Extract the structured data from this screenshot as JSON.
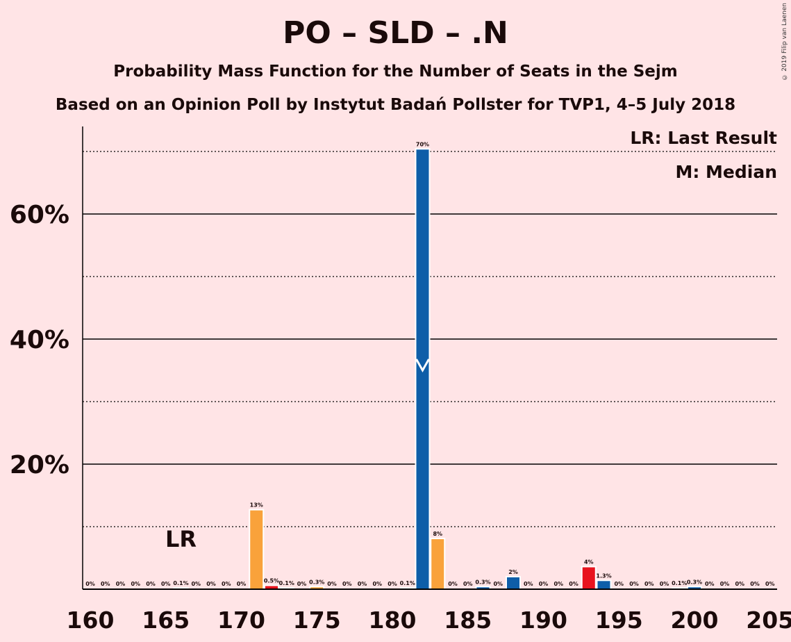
{
  "header": {
    "title": "PO – SLD – .N",
    "subtitle": "Probability Mass Function for the Number of Seats in the Sejm",
    "subtitle2": "Based on an Opinion Poll by Instytut Badań Pollster for TVP1, 4–5 July 2018",
    "copyright": "© 2019 Filip van Laenen"
  },
  "legend": {
    "lr": "LR: Last Result",
    "median": "M: Median"
  },
  "colors": {
    "background": "#ffe4e6",
    "blue": "#0e5ea8",
    "orange": "#f9a23b",
    "red": "#e8141e",
    "grid": "#000000"
  },
  "chart_data": {
    "type": "bar",
    "xlim": [
      160,
      205
    ],
    "ylim": [
      0,
      0.77
    ],
    "x_ticks": [
      160,
      165,
      170,
      175,
      180,
      185,
      190,
      195,
      200,
      205
    ],
    "y_major_ticks": [
      0.2,
      0.4,
      0.6
    ],
    "y_minor_lines": [
      0.1,
      0.3,
      0.5,
      0.7
    ],
    "y_tick_labels": [
      "20%",
      "40%",
      "60%"
    ],
    "last_result_seat": 166,
    "last_result_label": "LR",
    "median_seat": 182,
    "median_symbol": "M",
    "bars": [
      {
        "x": 160,
        "value": 0,
        "label": "0%",
        "color": "blue"
      },
      {
        "x": 161,
        "value": 0,
        "label": "0%",
        "color": "blue"
      },
      {
        "x": 162,
        "value": 0,
        "label": "0%",
        "color": "blue"
      },
      {
        "x": 163,
        "value": 0,
        "label": "0%",
        "color": "blue"
      },
      {
        "x": 164,
        "value": 0,
        "label": "0%",
        "color": "blue"
      },
      {
        "x": 165,
        "value": 0,
        "label": "0%",
        "color": "blue"
      },
      {
        "x": 166,
        "value": 0.001,
        "label": "0.1%",
        "color": "blue"
      },
      {
        "x": 167,
        "value": 0,
        "label": "0%",
        "color": "blue"
      },
      {
        "x": 168,
        "value": 0,
        "label": "0%",
        "color": "blue"
      },
      {
        "x": 169,
        "value": 0,
        "label": "0%",
        "color": "blue"
      },
      {
        "x": 170,
        "value": 0,
        "label": "0%",
        "color": "blue"
      },
      {
        "x": 171,
        "value": 0.126,
        "label": "13%",
        "color": "orange"
      },
      {
        "x": 172,
        "value": 0.005,
        "label": "0.5%",
        "color": "red"
      },
      {
        "x": 173,
        "value": 0.001,
        "label": "0.1%",
        "color": "blue"
      },
      {
        "x": 174,
        "value": 0,
        "label": "0%",
        "color": "blue"
      },
      {
        "x": 175,
        "value": 0.003,
        "label": "0.3%",
        "color": "orange"
      },
      {
        "x": 176,
        "value": 0,
        "label": "0%",
        "color": "blue"
      },
      {
        "x": 177,
        "value": 0,
        "label": "0%",
        "color": "blue"
      },
      {
        "x": 178,
        "value": 0,
        "label": "0%",
        "color": "blue"
      },
      {
        "x": 179,
        "value": 0,
        "label": "0%",
        "color": "blue"
      },
      {
        "x": 180,
        "value": 0,
        "label": "0%",
        "color": "blue"
      },
      {
        "x": 181,
        "value": 0.001,
        "label": "0.1%",
        "color": "blue"
      },
      {
        "x": 182,
        "value": 0.703,
        "label": "70%",
        "color": "blue"
      },
      {
        "x": 183,
        "value": 0.08,
        "label": "8%",
        "color": "orange"
      },
      {
        "x": 184,
        "value": 0,
        "label": "0%",
        "color": "blue"
      },
      {
        "x": 185,
        "value": 0,
        "label": "0%",
        "color": "blue"
      },
      {
        "x": 186,
        "value": 0.003,
        "label": "0.3%",
        "color": "blue"
      },
      {
        "x": 187,
        "value": 0,
        "label": "0%",
        "color": "blue"
      },
      {
        "x": 188,
        "value": 0.019,
        "label": "2%",
        "color": "blue"
      },
      {
        "x": 189,
        "value": 0,
        "label": "0%",
        "color": "blue"
      },
      {
        "x": 190,
        "value": 0,
        "label": "0%",
        "color": "blue"
      },
      {
        "x": 191,
        "value": 0,
        "label": "0%",
        "color": "blue"
      },
      {
        "x": 192,
        "value": 0,
        "label": "0%",
        "color": "blue"
      },
      {
        "x": 193,
        "value": 0.035,
        "label": "4%",
        "color": "red"
      },
      {
        "x": 194,
        "value": 0.013,
        "label": "1.3%",
        "color": "blue"
      },
      {
        "x": 195,
        "value": 0,
        "label": "0%",
        "color": "blue"
      },
      {
        "x": 196,
        "value": 0,
        "label": "0%",
        "color": "blue"
      },
      {
        "x": 197,
        "value": 0,
        "label": "0%",
        "color": "blue"
      },
      {
        "x": 198,
        "value": 0,
        "label": "0%",
        "color": "blue"
      },
      {
        "x": 199,
        "value": 0.001,
        "label": "0.1%",
        "color": "blue"
      },
      {
        "x": 200,
        "value": 0.003,
        "label": "0.3%",
        "color": "blue"
      },
      {
        "x": 201,
        "value": 0,
        "label": "0%",
        "color": "blue"
      },
      {
        "x": 202,
        "value": 0,
        "label": "0%",
        "color": "blue"
      },
      {
        "x": 203,
        "value": 0,
        "label": "0%",
        "color": "blue"
      },
      {
        "x": 204,
        "value": 0,
        "label": "0%",
        "color": "blue"
      },
      {
        "x": 205,
        "value": 0,
        "label": "0%",
        "color": "blue"
      }
    ]
  }
}
